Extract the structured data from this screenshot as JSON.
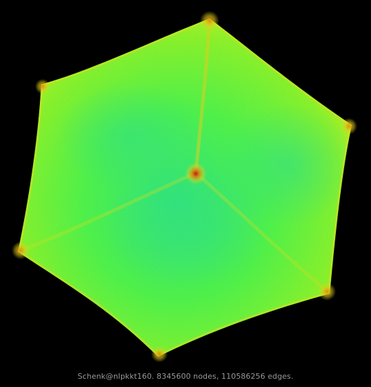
{
  "caption": "Schenk@nlpkkt160. 8345600 nodes, 110586256 edges.",
  "graph": {
    "colors": {
      "background": "#000000",
      "low": "#33e07a",
      "mid": "#5cf03a",
      "high": "#b8f020",
      "edge": "#e0d820",
      "hot": "#e08010",
      "hub": "#b02010"
    }
  }
}
